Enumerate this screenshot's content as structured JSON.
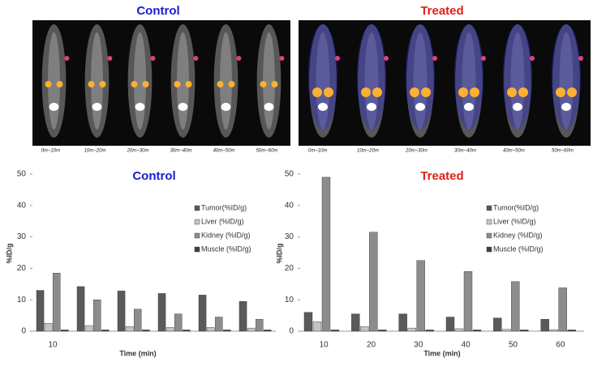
{
  "images": [
    {
      "title": "Control",
      "title_color": "#1a1ad0",
      "frames": [
        "0m~10m",
        "10m~20m",
        "20m~30m",
        "30m~40m",
        "40m~50m",
        "50m~60m"
      ]
    },
    {
      "title": "Treated",
      "title_color": "#e0201a",
      "frames": [
        "0m~10m",
        "10m~20m",
        "20m~30m",
        "30m~40m",
        "40m~50m",
        "50m~60m"
      ]
    }
  ],
  "chart_data": [
    {
      "type": "bar",
      "title": "Control",
      "title_color": "#1a1ad0",
      "ylabel": "%ID/g",
      "xlabel": "Time (min)",
      "categories": [
        "10",
        null,
        null,
        null,
        null,
        null
      ],
      "series": [
        {
          "name": "Tumor(%ID/g)",
          "color": "#5a5a5a",
          "values": [
            13,
            14.2,
            12.8,
            12,
            11.5,
            9.5
          ]
        },
        {
          "name": "Liver (%ID/g)",
          "color": "#c4c4c4",
          "values": [
            2.5,
            1.8,
            1.5,
            1.2,
            1.2,
            1.0
          ]
        },
        {
          "name": "Kidney (%ID/g)",
          "color": "#8c8c8c",
          "values": [
            18.5,
            10,
            7,
            5.5,
            4.5,
            3.8
          ]
        },
        {
          "name": "Muscle (%ID/g)",
          "color": "#404040",
          "values": [
            0.4,
            0.4,
            0.4,
            0.4,
            0.4,
            0.4
          ]
        }
      ],
      "ylim": [
        0,
        50
      ],
      "yticks": [
        0,
        10,
        20,
        30,
        40,
        50
      ]
    },
    {
      "type": "bar",
      "title": "Treated",
      "title_color": "#e0201a",
      "ylabel": "%ID/g",
      "xlabel": "Time (min)",
      "categories": [
        "10",
        "20",
        "30",
        "40",
        "50",
        "60"
      ],
      "series": [
        {
          "name": "Tumor(%ID/g)",
          "color": "#5a5a5a",
          "values": [
            6,
            5.5,
            5.5,
            4.5,
            4.2,
            3.8
          ]
        },
        {
          "name": "Liver (%ID/g)",
          "color": "#c4c4c4",
          "values": [
            3,
            1.5,
            1,
            0.8,
            0.6,
            0.5
          ]
        },
        {
          "name": "Kidney (%ID/g)",
          "color": "#8c8c8c",
          "values": [
            49,
            31.5,
            22.5,
            19,
            15.8,
            13.8
          ]
        },
        {
          "name": "Muscle (%ID/g)",
          "color": "#404040",
          "values": [
            0.4,
            0.4,
            0.4,
            0.4,
            0.4,
            0.4
          ]
        }
      ],
      "ylim": [
        0,
        50
      ],
      "yticks": [
        0,
        10,
        20,
        30,
        40,
        50
      ]
    }
  ]
}
